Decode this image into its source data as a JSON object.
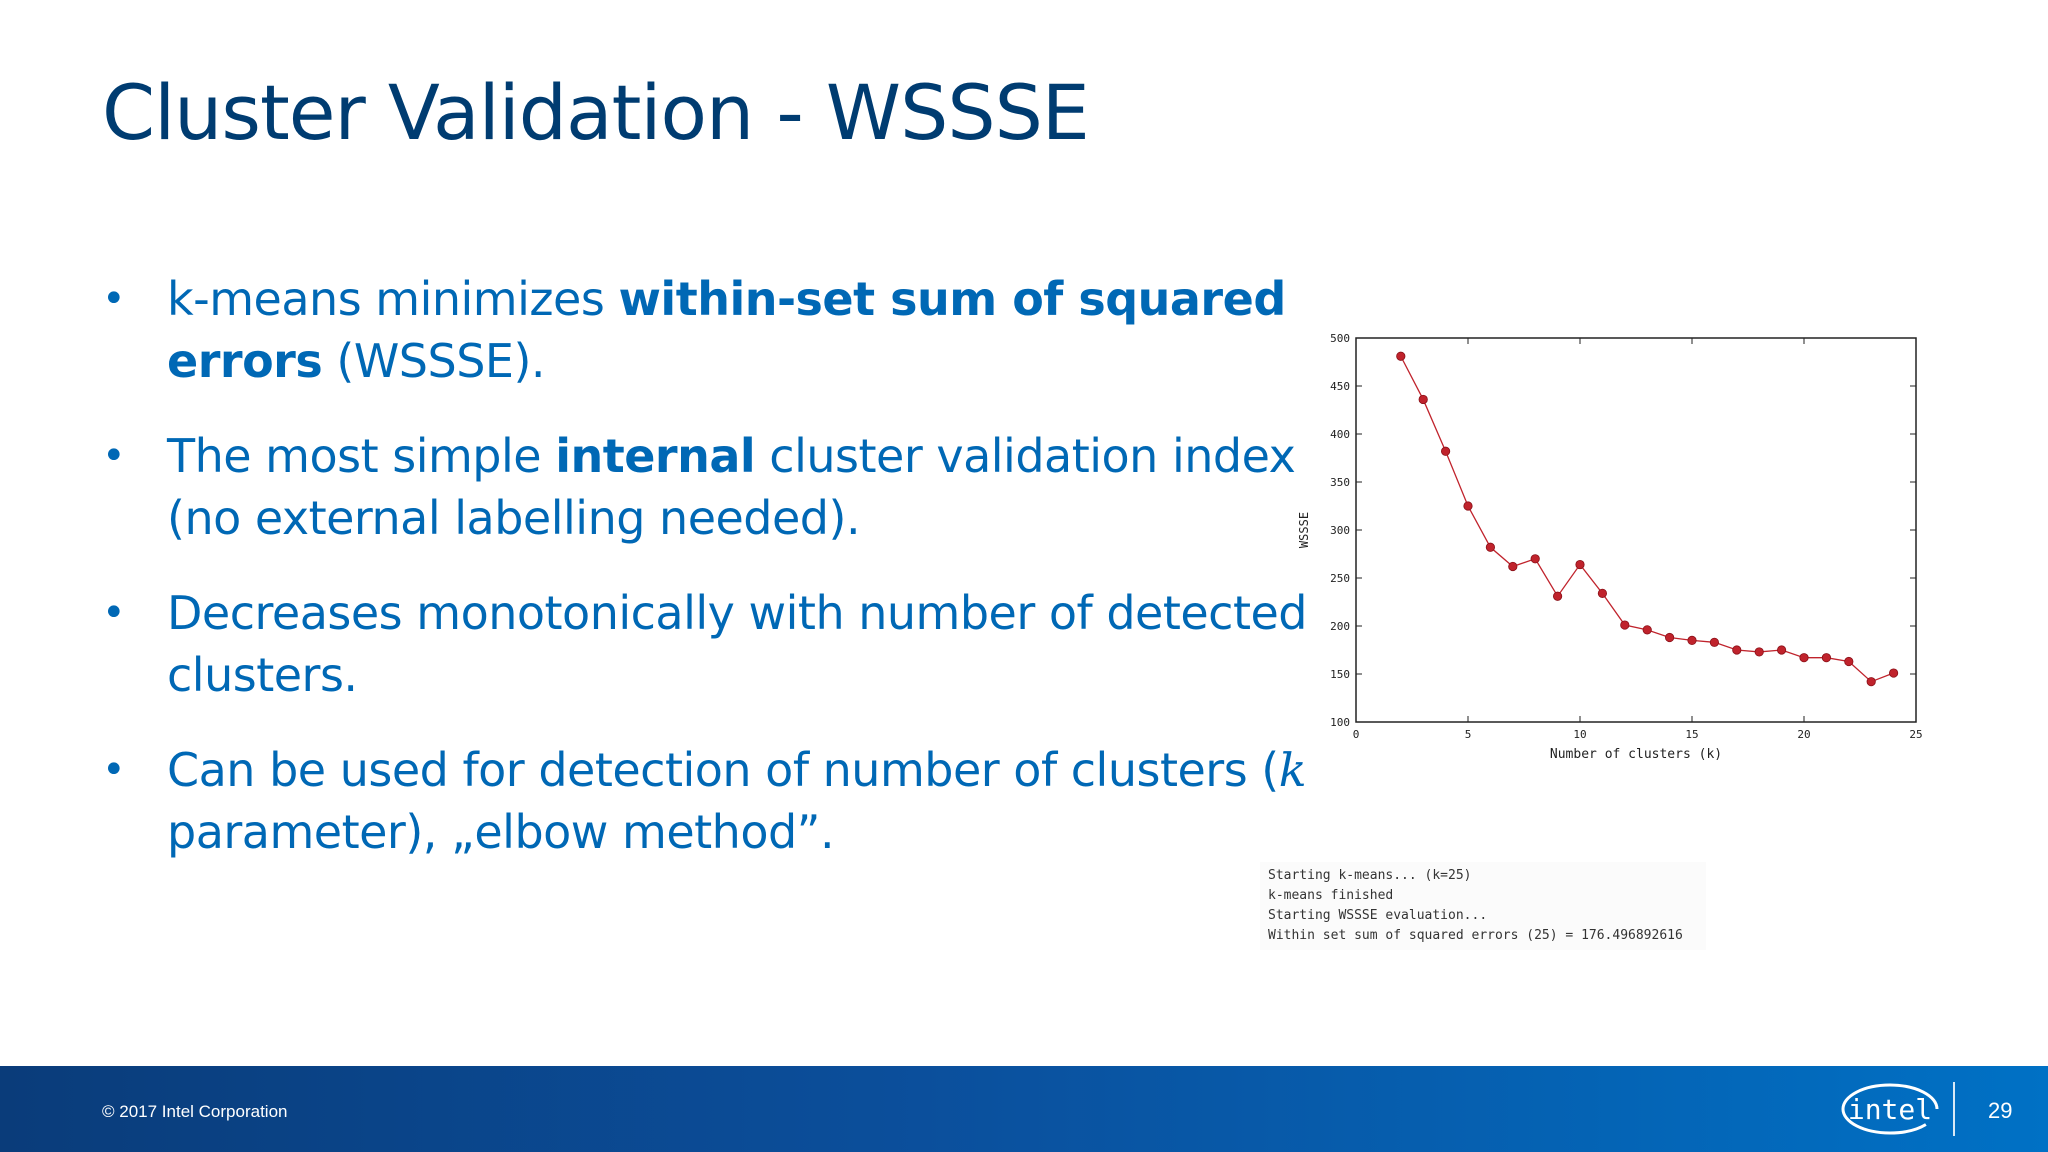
{
  "slide": {
    "title": "Cluster Validation - WSSSE",
    "bullets": [
      {
        "parts": [
          {
            "text": "k-means minimizes "
          },
          {
            "text": "within-set sum of squared errors",
            "bold": true
          },
          {
            "text": " (WSSSE)."
          }
        ]
      },
      {
        "parts": [
          {
            "text": "The most simple "
          },
          {
            "text": "internal",
            "bold": true
          },
          {
            "text": " cluster validation index (no external labelling needed)."
          }
        ]
      },
      {
        "parts": [
          {
            "text": "Decreases monotonically with number of detected clusters."
          }
        ]
      },
      {
        "parts": [
          {
            "text": "Can be used for detection of number of clusters ("
          },
          {
            "text": "k",
            "italic": true
          },
          {
            "text": " parameter), „elbow method”."
          }
        ]
      }
    ],
    "console_lines": [
      "Starting k-means... (k=25)",
      "k-means finished",
      "Starting WSSSE evaluation...",
      "Within set sum of squared errors (25) = 176.496892616"
    ],
    "footer": {
      "copyright": "© 2017 Intel Corporation",
      "logo_text": "intel",
      "page_number": "29"
    }
  },
  "colors": {
    "title": "#003c71",
    "text": "#0068b5",
    "series": "#c0232c",
    "footer_start": "#0a3c7a",
    "footer_end": "#0071c5"
  },
  "chart_data": {
    "type": "line",
    "title": "",
    "xlabel": "Number of clusters (k)",
    "ylabel": "WSSSE",
    "xlim": [
      0,
      25
    ],
    "ylim": [
      100,
      500
    ],
    "xticks": [
      0,
      5,
      10,
      15,
      20,
      25
    ],
    "yticks": [
      100,
      150,
      200,
      250,
      300,
      350,
      400,
      450,
      500
    ],
    "grid": false,
    "series": [
      {
        "x": [
          2,
          3,
          4,
          5,
          6,
          7,
          8,
          9,
          10,
          11,
          12,
          13,
          14,
          15,
          16,
          17,
          18,
          19,
          20,
          21,
          22,
          23,
          24
        ],
        "y": [
          481,
          436,
          382,
          325,
          282,
          262,
          270,
          231,
          264,
          234,
          201,
          196,
          188,
          185,
          183,
          175,
          173,
          175,
          167,
          167,
          163,
          142,
          151
        ]
      }
    ]
  }
}
